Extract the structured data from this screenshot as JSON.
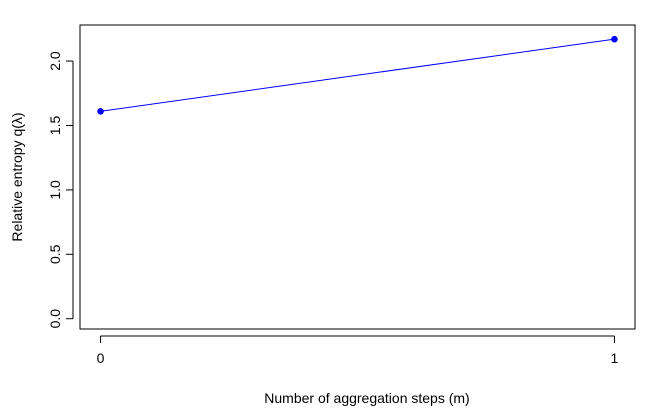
{
  "chart_data": {
    "type": "line",
    "title": "",
    "xlabel": "Number of aggregation steps (m)",
    "ylabel": "Relative entropy q(λ)",
    "x": [
      0,
      1
    ],
    "series": [
      {
        "values": [
          1.61,
          2.17
        ],
        "color": "#0000ff"
      }
    ],
    "xlim": [
      -0.04,
      1.04
    ],
    "ylim": [
      -0.08,
      2.28
    ],
    "xticks": [
      0,
      1
    ],
    "yticks": [
      0.0,
      0.5,
      1.0,
      1.5,
      2.0
    ],
    "xtick_labels": [
      "0",
      "1"
    ],
    "ytick_labels": [
      "0.0",
      "0.5",
      "1.0",
      "1.5",
      "2.0"
    ],
    "grid": false,
    "legend": "none"
  }
}
